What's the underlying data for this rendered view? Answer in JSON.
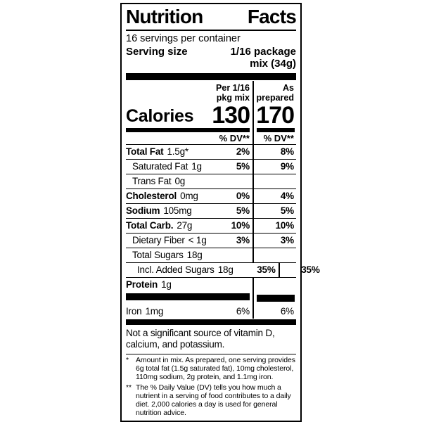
{
  "label": {
    "title_words": [
      "Nutrition",
      "Facts"
    ],
    "servings_per_container": "16 servings per container",
    "serving_size": {
      "label": "Serving size",
      "value_lines": [
        "1/16 package",
        "mix (34g)"
      ]
    },
    "calories_label": "Calories",
    "columns": [
      {
        "header_lines": [
          "Per 1/16",
          "pkg mix"
        ],
        "calories": "130",
        "dv_header": "% DV**"
      },
      {
        "header_lines": [
          "As",
          "prepared"
        ],
        "calories": "170",
        "dv_header": "% DV**"
      }
    ],
    "rows": [
      {
        "name": "Total Fat",
        "amount": "1.5g*",
        "dv1": "2%",
        "dv2": "8%"
      },
      {
        "name": "Saturated Fat",
        "amount": "1g",
        "dv1": "5%",
        "dv2": "9%"
      },
      {
        "name": "Trans Fat",
        "amount": "0g",
        "dv1": "",
        "dv2": ""
      },
      {
        "name": "Cholesterol",
        "amount": "0mg",
        "dv1": "0%",
        "dv2": "4%"
      },
      {
        "name": "Sodium",
        "amount": "105mg",
        "dv1": "5%",
        "dv2": "5%"
      },
      {
        "name": "Total Carb.",
        "amount": "27g",
        "dv1": "10%",
        "dv2": "10%"
      },
      {
        "name": "Dietary Fiber",
        "amount": "< 1g",
        "dv1": "3%",
        "dv2": "3%"
      },
      {
        "name": "Total Sugars",
        "amount": "18g",
        "dv1": "",
        "dv2": ""
      },
      {
        "name": "Incl. Added Sugars",
        "amount": "18g",
        "dv1": "35%",
        "dv2": "35%"
      },
      {
        "name": "Protein",
        "amount": "1g",
        "dv1": "",
        "dv2": ""
      }
    ],
    "iron_row": {
      "name": "Iron",
      "amount": "1mg",
      "dv1": "6%",
      "dv2": "6%"
    },
    "not_significant": "Not a significant source of vitamin D, calcium, and potassium.",
    "footnotes": [
      {
        "marker": "*",
        "text": "Amount in mix. As prepared, one serving provides 6g total fat (1.5g saturated fat), 10mg cholesterol, 110mg sodium, 2g protein, and 1.1mg iron."
      },
      {
        "marker": "**",
        "text": "The % Daily Value (DV) tells you how much a nutrient in a serving of food contributes to a daily diet. 2,000 calories a day is used for general nutrition advice."
      }
    ],
    "colors": {
      "ink": "#000000",
      "paper": "#ffffff"
    }
  }
}
